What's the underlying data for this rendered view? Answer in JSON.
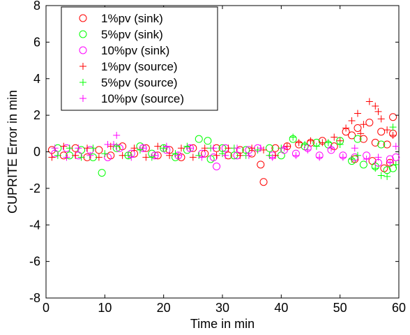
{
  "chart_data": {
    "type": "scatter",
    "title": "",
    "xlabel": "Time in min",
    "ylabel": "CUPRITE Error in min",
    "xlim": [
      0,
      60
    ],
    "ylim": [
      -8,
      8
    ],
    "xticks": [
      "0",
      "10",
      "20",
      "30",
      "40",
      "50",
      "60"
    ],
    "yticks": [
      "-8",
      "-6",
      "-4",
      "-2",
      "0",
      "2",
      "4",
      "6",
      "8"
    ],
    "grid": false,
    "legend_position": "top-left",
    "series": [
      {
        "name": "1%pv (sink)",
        "marker": "circle",
        "color": "#ff0000",
        "points": [
          [
            1,
            0.1
          ],
          [
            3,
            -0.2
          ],
          [
            5,
            0.2
          ],
          [
            7,
            -0.3
          ],
          [
            9,
            0.1
          ],
          [
            11,
            -0.2
          ],
          [
            13,
            0.3
          ],
          [
            15,
            -0.1
          ],
          [
            17,
            0.2
          ],
          [
            19,
            -0.2
          ],
          [
            21,
            0.1
          ],
          [
            23,
            -0.3
          ],
          [
            25,
            0.2
          ],
          [
            27,
            -0.1
          ],
          [
            29,
            0.2
          ],
          [
            31,
            -0.2
          ],
          [
            33,
            0.1
          ],
          [
            35,
            -0.1
          ],
          [
            36.5,
            -0.7
          ],
          [
            37,
            -1.65
          ],
          [
            39,
            0.2
          ],
          [
            41,
            0.3
          ],
          [
            43,
            0.4
          ],
          [
            45,
            0.5
          ],
          [
            47,
            0.6
          ],
          [
            49,
            0.3
          ],
          [
            51,
            1.1
          ],
          [
            52,
            0.9
          ],
          [
            53,
            1.3
          ],
          [
            54,
            0.7
          ],
          [
            55,
            1.6
          ],
          [
            56,
            0.5
          ],
          [
            57,
            1.1
          ],
          [
            58,
            0.4
          ],
          [
            59,
            1.0
          ],
          [
            59,
            1.9
          ],
          [
            52.5,
            -0.4
          ],
          [
            55.5,
            -0.5
          ],
          [
            58.5,
            -0.6
          ],
          [
            57.5,
            -0.9
          ]
        ]
      },
      {
        "name": "5%pv (sink)",
        "marker": "circle",
        "color": "#00ff00",
        "points": [
          [
            2,
            0.2
          ],
          [
            4,
            -0.2
          ],
          [
            6,
            0.1
          ],
          [
            8,
            -0.3
          ],
          [
            9.5,
            -1.15
          ],
          [
            12,
            0.2
          ],
          [
            14,
            -0.2
          ],
          [
            16,
            0.3
          ],
          [
            18,
            -0.1
          ],
          [
            20,
            0.2
          ],
          [
            22,
            -0.3
          ],
          [
            24,
            0.1
          ],
          [
            26,
            0.7
          ],
          [
            27.5,
            0.6
          ],
          [
            28,
            -0.4
          ],
          [
            30,
            0.2
          ],
          [
            32,
            -0.2
          ],
          [
            34,
            0.1
          ],
          [
            38,
            0.2
          ],
          [
            40,
            -0.2
          ],
          [
            42,
            0.7
          ],
          [
            44,
            0.3
          ],
          [
            46,
            0.5
          ],
          [
            48,
            0.4
          ],
          [
            50,
            0.6
          ],
          [
            52,
            -0.5
          ],
          [
            54,
            -0.7
          ],
          [
            56,
            -0.8
          ],
          [
            58,
            -1.0
          ],
          [
            59,
            -0.9
          ],
          [
            53,
            0.7
          ],
          [
            57,
            0.4
          ]
        ]
      },
      {
        "name": "10%pv (sink)",
        "marker": "circle",
        "color": "#ff00ff",
        "points": [
          [
            1.5,
            -0.1
          ],
          [
            3.5,
            0.2
          ],
          [
            5.5,
            -0.2
          ],
          [
            7.5,
            0.1
          ],
          [
            10.5,
            -0.3
          ],
          [
            12.5,
            0.2
          ],
          [
            14.5,
            -0.1
          ],
          [
            16.5,
            0.2
          ],
          [
            18.5,
            -0.2
          ],
          [
            20.5,
            0.1
          ],
          [
            22.5,
            -0.2
          ],
          [
            24.5,
            0.2
          ],
          [
            26.5,
            -0.1
          ],
          [
            28.5,
            -0.3
          ],
          [
            29,
            -0.8
          ],
          [
            30.5,
            0.2
          ],
          [
            32.5,
            -0.2
          ],
          [
            34.5,
            0.1
          ],
          [
            36,
            0.2
          ],
          [
            38.5,
            -0.2
          ],
          [
            40.5,
            0.1
          ],
          [
            42.5,
            -0.1
          ],
          [
            44.5,
            0.2
          ],
          [
            46.5,
            -0.2
          ],
          [
            48.5,
            0.1
          ],
          [
            50.5,
            -0.2
          ],
          [
            52.5,
            -0.3
          ],
          [
            54.5,
            -0.2
          ],
          [
            56.5,
            -0.6
          ],
          [
            58.5,
            -0.4
          ],
          [
            59.5,
            -0.3
          ]
        ]
      },
      {
        "name": "1%pv (source)",
        "marker": "plus",
        "color": "#ff0000",
        "points": [
          [
            1,
            -0.3
          ],
          [
            3,
            0.3
          ],
          [
            5,
            -0.2
          ],
          [
            7,
            0.2
          ],
          [
            9,
            -0.3
          ],
          [
            11,
            0.3
          ],
          [
            13,
            -0.2
          ],
          [
            15,
            0.2
          ],
          [
            17,
            -0.3
          ],
          [
            19,
            0.3
          ],
          [
            21,
            -0.2
          ],
          [
            23,
            0.2
          ],
          [
            25,
            -0.3
          ],
          [
            27,
            0.2
          ],
          [
            29,
            -0.2
          ],
          [
            31,
            0.2
          ],
          [
            33,
            -0.2
          ],
          [
            35,
            0.2
          ],
          [
            37,
            0.1
          ],
          [
            39,
            -0.2
          ],
          [
            41,
            0.3
          ],
          [
            43,
            0.5
          ],
          [
            45,
            0.6
          ],
          [
            47,
            0.5
          ],
          [
            49,
            0.8
          ],
          [
            50,
            0.6
          ],
          [
            51,
            1.3
          ],
          [
            52,
            1.7
          ],
          [
            53,
            2.1
          ],
          [
            54,
            1.5
          ],
          [
            55,
            2.75
          ],
          [
            56,
            2.5
          ],
          [
            57,
            1.8
          ],
          [
            58,
            1.2
          ],
          [
            59,
            0.9
          ],
          [
            56.5,
            2.2
          ],
          [
            53.5,
            1.0
          ]
        ]
      },
      {
        "name": "5%pv (source)",
        "marker": "plus",
        "color": "#00ff00",
        "points": [
          [
            2,
            -0.2
          ],
          [
            4,
            0.2
          ],
          [
            6,
            -0.3
          ],
          [
            8,
            0.2
          ],
          [
            10,
            -0.1
          ],
          [
            12,
            0.3
          ],
          [
            14,
            -0.2
          ],
          [
            16,
            0.1
          ],
          [
            18,
            -0.3
          ],
          [
            20,
            0.2
          ],
          [
            22,
            -0.1
          ],
          [
            24,
            0.3
          ],
          [
            26,
            -0.2
          ],
          [
            28,
            0.2
          ],
          [
            30,
            -0.1
          ],
          [
            32,
            0.2
          ],
          [
            34,
            -0.2
          ],
          [
            36,
            0.1
          ],
          [
            38,
            -0.2
          ],
          [
            40,
            0.2
          ],
          [
            42,
            0.8
          ],
          [
            44,
            0.4
          ],
          [
            46,
            0.3
          ],
          [
            48,
            0.5
          ],
          [
            50,
            0.4
          ],
          [
            52,
            -0.4
          ],
          [
            53,
            -0.2
          ],
          [
            56,
            -0.9
          ],
          [
            57,
            -1.3
          ],
          [
            58,
            -1.35
          ],
          [
            59,
            1.35
          ],
          [
            59.5,
            -0.7
          ]
        ]
      },
      {
        "name": "10%pv (source)",
        "marker": "plus",
        "color": "#ff00ff",
        "points": [
          [
            1.5,
            0.2
          ],
          [
            3.5,
            -0.3
          ],
          [
            5.5,
            0.2
          ],
          [
            7.5,
            -0.2
          ],
          [
            10.5,
            0.4
          ],
          [
            11.5,
            0.4
          ],
          [
            12,
            0.9
          ],
          [
            14.5,
            -0.3
          ],
          [
            16.5,
            0.2
          ],
          [
            18.5,
            -0.2
          ],
          [
            20.5,
            0.3
          ],
          [
            22.5,
            -0.2
          ],
          [
            24.5,
            0.2
          ],
          [
            26.5,
            -0.3
          ],
          [
            28.5,
            0.2
          ],
          [
            30.5,
            -0.2
          ],
          [
            32.5,
            0.2
          ],
          [
            34.5,
            -0.2
          ],
          [
            36.5,
            0.2
          ],
          [
            38.5,
            -0.3
          ],
          [
            40.5,
            0.2
          ],
          [
            42.5,
            -0.2
          ],
          [
            44.5,
            0.1
          ],
          [
            46.5,
            -0.3
          ],
          [
            48.5,
            0.2
          ],
          [
            50.5,
            -0.3
          ],
          [
            52.5,
            0.2
          ],
          [
            54.5,
            -0.4
          ],
          [
            56.5,
            -0.3
          ],
          [
            58.5,
            -0.6
          ],
          [
            59.5,
            0.3
          ]
        ]
      }
    ]
  }
}
